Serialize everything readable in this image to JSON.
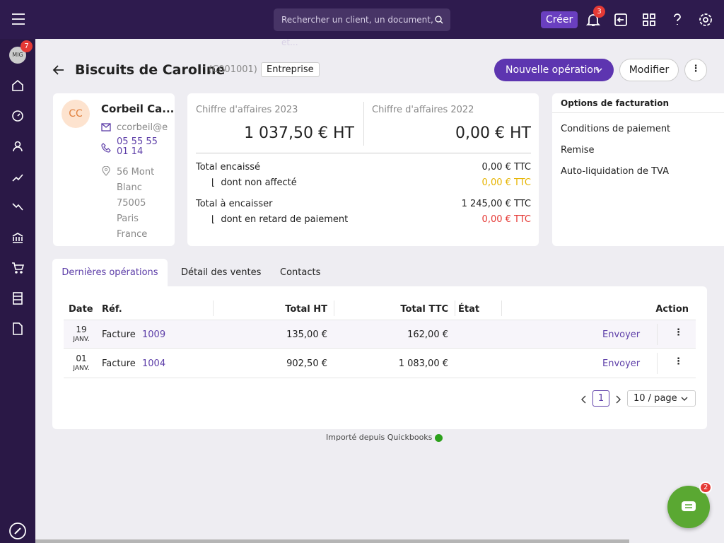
{
  "topbar": {
    "search_placeholder": "Rechercher un client, un document, et...",
    "create": "Créer",
    "notifications_badge": "3"
  },
  "sidebar": {
    "avatar": "MIG",
    "avatar_badge": "7"
  },
  "header": {
    "title": "Biscuits de Caroline",
    "code": "(C001001)",
    "tag": "Entreprise",
    "primary_button": "Nouvelle opération",
    "secondary_button": "Modifier"
  },
  "contact": {
    "initials": "CC",
    "name": "Corbeil Ca...",
    "email": "ccorbeil@e",
    "phone": "05 55 55 01 14",
    "address": [
      "56 Mont",
      "Blanc",
      "75005",
      "Paris",
      "France"
    ]
  },
  "revenue": {
    "current_label": "Chiffre d'affaires 2023",
    "current_value": "1 037,50 € HT",
    "previous_label": "Chiffre d'affaires 2022",
    "previous_value": "0,00 € HT",
    "rows": [
      {
        "label": "Total encaissé",
        "value": "0,00 € TTC"
      },
      {
        "label": "dont non affecté",
        "value": "0,00 € TTC"
      },
      {
        "label": "Total à encaisser",
        "value": "1 245,00 € TTC"
      },
      {
        "label": "dont en retard de paiement",
        "value": "0,00 € TTC"
      }
    ]
  },
  "billing_options": {
    "title": "Options de facturation",
    "items": [
      "Conditions de paiement",
      "Remise",
      "Auto-liquidation de TVA"
    ]
  },
  "tabs": [
    "Dernières opérations",
    "Détail des ventes",
    "Contacts"
  ],
  "table": {
    "headers": [
      "Date",
      "Réf.",
      "Total HT",
      "Total TTC",
      "État",
      "Action"
    ],
    "rows": [
      {
        "day": "19",
        "month": "JANV.",
        "type": "Facture",
        "number": "1009",
        "total_ht": "135,00 €",
        "total_ttc": "162,00 €",
        "action": "Envoyer"
      },
      {
        "day": "01",
        "month": "JANV.",
        "type": "Facture",
        "number": "1004",
        "total_ht": "902,50 €",
        "total_ttc": "1 083,00 €",
        "action": "Envoyer"
      }
    ]
  },
  "pagination": {
    "page": "1",
    "page_size": "10 / page"
  },
  "footer": {
    "import_note": "Importé depuis Quickbooks"
  },
  "chat": {
    "badge": "2"
  }
}
